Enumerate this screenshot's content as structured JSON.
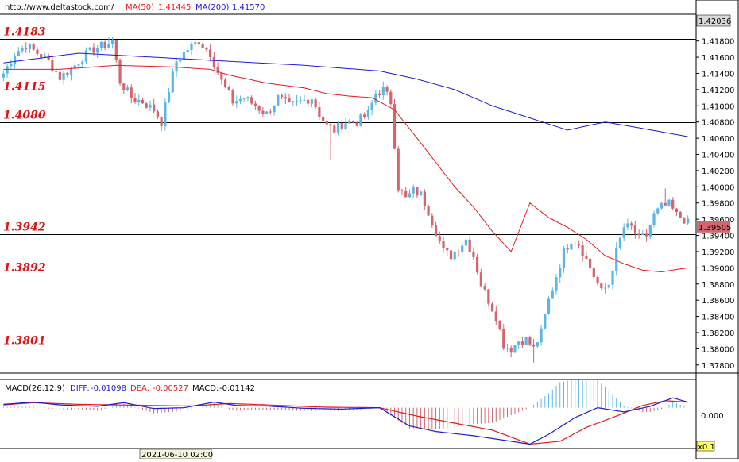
{
  "header": {
    "url": "http://www.deltastock.com/",
    "ma50": {
      "label": "MA(50)",
      "value": "1.41445",
      "color": "#e8181c"
    },
    "ma200": {
      "label": "MA(200)",
      "value": "1.41570",
      "color": "#1a1ad8"
    }
  },
  "macd_header": {
    "label": "MACD(26,12,9)",
    "diff": {
      "label": "DIFF:",
      "value": "-0.01098",
      "color": "#1a1ad8"
    },
    "dea": {
      "label": "DEA:",
      "value": "-0.00527",
      "color": "#e8181c"
    },
    "macd": {
      "label": "MACD:",
      "value": "-0.01142",
      "color": "#000000"
    }
  },
  "price_tag_top": "1.42036",
  "price_tag_current": "1.39505",
  "macd_zero_label": "0.000",
  "macd_scale_label": "x0.1",
  "timestamp_label": "2021-06-10 02:00",
  "colors": {
    "bull": "#5bb6e6",
    "bear": "#d4646e",
    "ma50": "#e8181c",
    "ma200": "#1a1ad8",
    "level_text": "#e01010"
  },
  "chart_data": {
    "type": "candlestick",
    "y_axis": {
      "min": 1.377,
      "max": 1.4213,
      "ticks": [
        "1.41800",
        "1.41600",
        "1.41400",
        "1.41200",
        "1.41000",
        "1.40800",
        "1.40600",
        "1.40400",
        "1.40200",
        "1.40000",
        "1.39800",
        "1.39600",
        "1.39400",
        "1.39200",
        "1.39000",
        "1.38800",
        "1.38600",
        "1.38400",
        "1.38200",
        "1.38000",
        "1.37800"
      ]
    },
    "levels": [
      {
        "label": "1.4183",
        "value": 1.4183
      },
      {
        "label": "1.4115",
        "value": 1.4115
      },
      {
        "label": "1.4080",
        "value": 1.408
      },
      {
        "label": "1.3942",
        "value": 1.3942
      },
      {
        "label": "1.3892",
        "value": 1.3892
      },
      {
        "label": "1.3801",
        "value": 1.3801
      }
    ],
    "current_price": 1.39505,
    "close_anchors": [
      [
        0,
        1.414
      ],
      [
        3,
        1.4165
      ],
      [
        6,
        1.4175
      ],
      [
        9,
        1.4165
      ],
      [
        12,
        1.4155
      ],
      [
        15,
        1.4135
      ],
      [
        18,
        1.4145
      ],
      [
        21,
        1.416
      ],
      [
        24,
        1.417
      ],
      [
        27,
        1.4175
      ],
      [
        29,
        1.418
      ],
      [
        31,
        1.413
      ],
      [
        34,
        1.411
      ],
      [
        37,
        1.4105
      ],
      [
        40,
        1.4095
      ],
      [
        42,
        1.408
      ],
      [
        44,
        1.412
      ],
      [
        46,
        1.4155
      ],
      [
        49,
        1.417
      ],
      [
        52,
        1.418
      ],
      [
        55,
        1.4165
      ],
      [
        58,
        1.413
      ],
      [
        61,
        1.4105
      ],
      [
        64,
        1.411
      ],
      [
        67,
        1.41
      ],
      [
        70,
        1.409
      ],
      [
        73,
        1.411
      ],
      [
        76,
        1.41
      ],
      [
        79,
        1.4105
      ],
      [
        82,
        1.411
      ],
      [
        84,
        1.409
      ],
      [
        86,
        1.4075
      ],
      [
        88,
        1.407
      ],
      [
        91,
        1.408
      ],
      [
        94,
        1.408
      ],
      [
        97,
        1.409
      ],
      [
        99,
        1.4115
      ],
      [
        101,
        1.412
      ],
      [
        103,
        1.4105
      ],
      [
        105,
        1.4
      ],
      [
        107,
        1.3985
      ],
      [
        109,
        1.3995
      ],
      [
        111,
        1.399
      ],
      [
        113,
        1.397
      ],
      [
        115,
        1.3945
      ],
      [
        117,
        1.392
      ],
      [
        119,
        1.3915
      ],
      [
        121,
        1.3925
      ],
      [
        123,
        1.3935
      ],
      [
        125,
        1.3915
      ],
      [
        127,
        1.388
      ],
      [
        129,
        1.386
      ],
      [
        131,
        1.384
      ],
      [
        133,
        1.3805
      ],
      [
        135,
        1.38
      ],
      [
        137,
        1.381
      ],
      [
        139,
        1.3812
      ],
      [
        141,
        1.38
      ],
      [
        143,
        1.382
      ],
      [
        145,
        1.386
      ],
      [
        147,
        1.389
      ],
      [
        149,
        1.392
      ],
      [
        151,
        1.3935
      ],
      [
        153,
        1.393
      ],
      [
        155,
        1.391
      ],
      [
        157,
        1.389
      ],
      [
        159,
        1.387
      ],
      [
        161,
        1.388
      ],
      [
        163,
        1.392
      ],
      [
        165,
        1.395
      ],
      [
        167,
        1.395
      ],
      [
        169,
        1.3935
      ],
      [
        171,
        1.394
      ],
      [
        173,
        1.3965
      ],
      [
        175,
        1.3975
      ],
      [
        177,
        1.3978
      ],
      [
        179,
        1.3965
      ],
      [
        181,
        1.396
      ],
      [
        182,
        1.3955
      ]
    ],
    "spikes": [
      [
        28,
        1.4185,
        "high"
      ],
      [
        48,
        1.418,
        "high"
      ],
      [
        87,
        1.4033,
        "low"
      ],
      [
        101,
        1.413,
        "high"
      ],
      [
        141,
        1.3783,
        "low"
      ],
      [
        176,
        1.3998,
        "high"
      ]
    ],
    "ma50_points": [
      [
        0,
        1.4145
      ],
      [
        15,
        1.4145
      ],
      [
        30,
        1.415
      ],
      [
        45,
        1.4148
      ],
      [
        55,
        1.4145
      ],
      [
        60,
        1.4138
      ],
      [
        70,
        1.4128
      ],
      [
        80,
        1.4122
      ],
      [
        86,
        1.4115
      ],
      [
        92,
        1.4112
      ],
      [
        98,
        1.411
      ],
      [
        104,
        1.4095
      ],
      [
        110,
        1.406
      ],
      [
        115,
        1.403
      ],
      [
        120,
        1.4
      ],
      [
        125,
        1.3975
      ],
      [
        130,
        1.3945
      ],
      [
        135,
        1.392
      ],
      [
        140,
        1.398
      ],
      [
        145,
        1.3962
      ],
      [
        150,
        1.395
      ],
      [
        155,
        1.3935
      ],
      [
        160,
        1.3915
      ],
      [
        165,
        1.3905
      ],
      [
        170,
        1.3897
      ],
      [
        175,
        1.3895
      ],
      [
        182,
        1.39
      ]
    ],
    "ma200_points": [
      [
        0,
        1.4153
      ],
      [
        20,
        1.4165
      ],
      [
        40,
        1.416
      ],
      [
        60,
        1.4155
      ],
      [
        80,
        1.415
      ],
      [
        100,
        1.4143
      ],
      [
        110,
        1.4133
      ],
      [
        120,
        1.412
      ],
      [
        130,
        1.41
      ],
      [
        140,
        1.4085
      ],
      [
        150,
        1.407
      ],
      [
        160,
        1.408
      ],
      [
        170,
        1.4072
      ],
      [
        182,
        1.4062
      ]
    ],
    "macd": {
      "diff_points": [
        [
          0,
          0.012
        ],
        [
          8,
          0.02
        ],
        [
          15,
          0.01
        ],
        [
          25,
          0.005
        ],
        [
          32,
          0.018
        ],
        [
          40,
          -0.003
        ],
        [
          48,
          0.0
        ],
        [
          56,
          0.02
        ],
        [
          62,
          0.008
        ],
        [
          70,
          0.006
        ],
        [
          80,
          -0.002
        ],
        [
          90,
          -0.005
        ],
        [
          100,
          0.0
        ],
        [
          108,
          -0.065
        ],
        [
          115,
          -0.085
        ],
        [
          125,
          -0.1
        ],
        [
          135,
          -0.12
        ],
        [
          140,
          -0.13
        ],
        [
          145,
          -0.095
        ],
        [
          152,
          -0.035
        ],
        [
          158,
          0.0
        ],
        [
          165,
          -0.015
        ],
        [
          172,
          0.005
        ],
        [
          178,
          0.035
        ],
        [
          182,
          0.02
        ]
      ],
      "dea_points": [
        [
          0,
          0.01
        ],
        [
          8,
          0.018
        ],
        [
          20,
          0.012
        ],
        [
          30,
          0.01
        ],
        [
          40,
          0.008
        ],
        [
          50,
          0.006
        ],
        [
          60,
          0.015
        ],
        [
          70,
          0.01
        ],
        [
          85,
          0.002
        ],
        [
          100,
          0.0
        ],
        [
          110,
          -0.03
        ],
        [
          120,
          -0.055
        ],
        [
          130,
          -0.08
        ],
        [
          140,
          -0.13
        ],
        [
          148,
          -0.12
        ],
        [
          155,
          -0.07
        ],
        [
          162,
          -0.035
        ],
        [
          170,
          0.008
        ],
        [
          176,
          0.025
        ],
        [
          182,
          0.02
        ]
      ]
    }
  }
}
